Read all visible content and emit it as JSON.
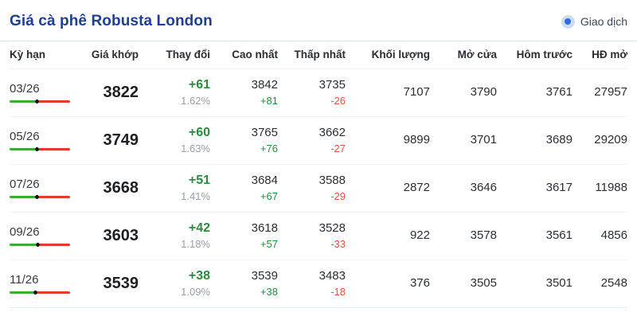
{
  "header": {
    "title": "Giá cà phê Robusta London",
    "status_label": "Giao dịch"
  },
  "colors": {
    "title_blue": "#1e3f94",
    "up_green": "#2b8a3e",
    "down_red": "#e2564a",
    "percent_gray": "#99a0a8",
    "bar_green": "#3faa3c",
    "bar_red": "#e53935",
    "status_dot_blue": "#2e6be0",
    "status_ring_blue": "#ccdcf6"
  },
  "table": {
    "columns": {
      "term": "Kỳ hạn",
      "match_price": "Giá khớp",
      "change": "Thay đổi",
      "high": "Cao nhất",
      "low": "Thấp nhất",
      "volume": "Khối lượng",
      "open": "Mở cửa",
      "prev": "Hôm trước",
      "open_interest": "HĐ mở"
    },
    "rows": [
      {
        "term": "03/26",
        "match_price": "3822",
        "change": "+61",
        "change_pct": "1.62%",
        "high": "3842",
        "high_change": "+81",
        "low": "3735",
        "low_change": "-26",
        "volume": "7107",
        "open": "3790",
        "prev": "3761",
        "open_interest": "27957",
        "bar_green_pct": 42
      },
      {
        "term": "05/26",
        "match_price": "3749",
        "change": "+60",
        "change_pct": "1.63%",
        "high": "3765",
        "high_change": "+76",
        "low": "3662",
        "low_change": "-27",
        "volume": "9899",
        "open": "3701",
        "prev": "3689",
        "open_interest": "29209",
        "bar_green_pct": 42
      },
      {
        "term": "07/26",
        "match_price": "3668",
        "change": "+51",
        "change_pct": "1.41%",
        "high": "3684",
        "high_change": "+67",
        "low": "3588",
        "low_change": "-29",
        "volume": "2872",
        "open": "3646",
        "prev": "3617",
        "open_interest": "11988",
        "bar_green_pct": 42
      },
      {
        "term": "09/26",
        "match_price": "3603",
        "change": "+42",
        "change_pct": "1.18%",
        "high": "3618",
        "high_change": "+57",
        "low": "3528",
        "low_change": "-33",
        "volume": "922",
        "open": "3578",
        "prev": "3561",
        "open_interest": "4856",
        "bar_green_pct": 44
      },
      {
        "term": "11/26",
        "match_price": "3539",
        "change": "+38",
        "change_pct": "1.09%",
        "high": "3539",
        "high_change": "+38",
        "low": "3483",
        "low_change": "-18",
        "volume": "376",
        "open": "3505",
        "prev": "3501",
        "open_interest": "2548",
        "bar_green_pct": 40
      }
    ]
  }
}
